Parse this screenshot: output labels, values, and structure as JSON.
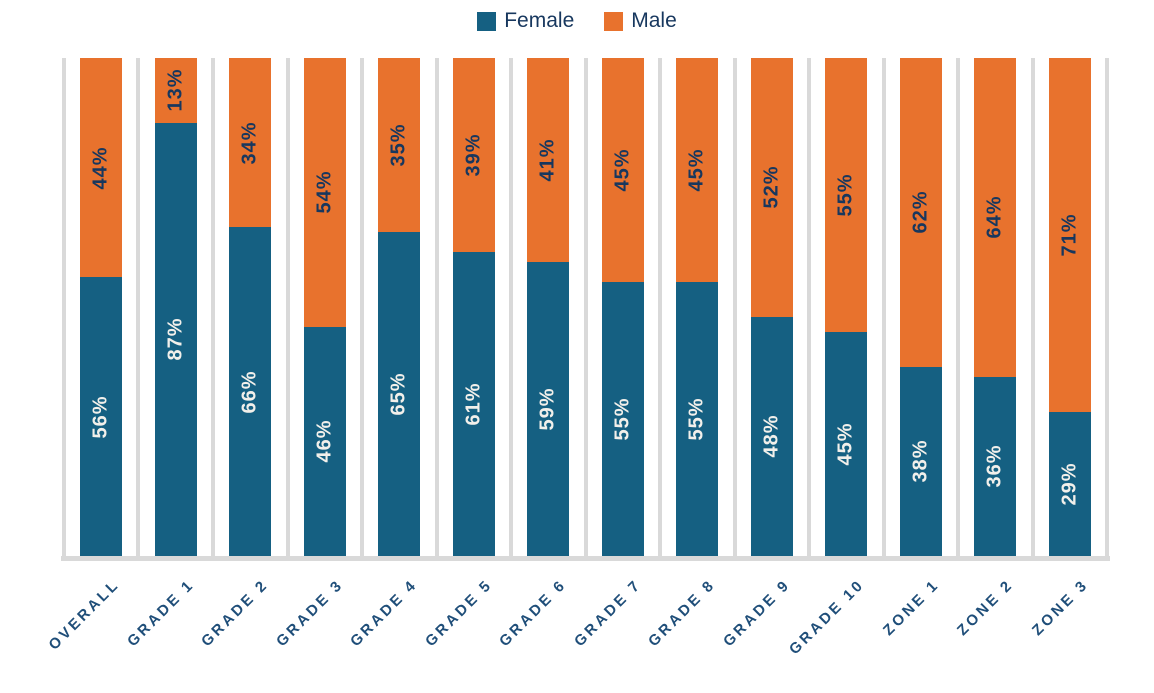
{
  "chart_data": {
    "type": "bar",
    "subtype": "stacked-100-percent",
    "title": "",
    "xlabel": "",
    "ylabel": "",
    "ylim": [
      0,
      100
    ],
    "value_suffix": "%",
    "legend_position": "top",
    "gridlines": "vertical-category-separators",
    "categories": [
      "OVERALL",
      "GRADE 1",
      "GRADE 2",
      "GRADE 3",
      "GRADE 4",
      "GRADE 5",
      "GRADE 6",
      "GRADE 7",
      "GRADE 8",
      "GRADE 9",
      "GRADE 10",
      "ZONE 1",
      "ZONE 2",
      "ZONE 3"
    ],
    "series": [
      {
        "name": "Female",
        "color": "#156082",
        "label_color": "#F2F0EB",
        "values": [
          56,
          87,
          66,
          46,
          65,
          61,
          59,
          55,
          55,
          48,
          45,
          38,
          36,
          29
        ]
      },
      {
        "name": "Male",
        "color": "#E8722D",
        "label_color": "#17375E",
        "values": [
          44,
          13,
          34,
          54,
          35,
          39,
          41,
          45,
          45,
          52,
          55,
          62,
          64,
          71
        ]
      }
    ],
    "colors": {
      "gridline": "#D9D9D9",
      "axis_line": "#D9D9D9",
      "legend_text": "#17375E",
      "category_label": "#1F4E79",
      "background": "#FFFFFF"
    }
  }
}
